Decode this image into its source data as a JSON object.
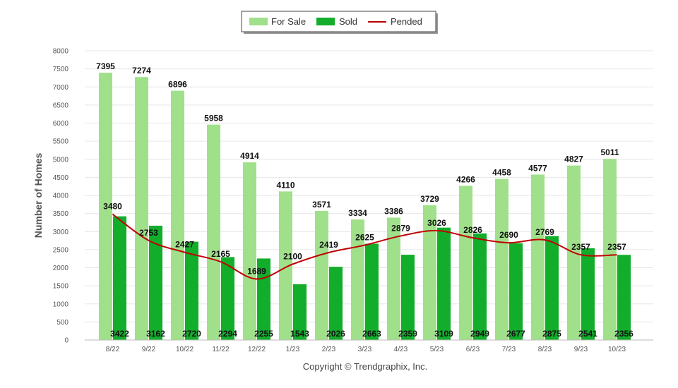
{
  "chart_data": {
    "type": "bar",
    "title": "",
    "xlabel": "",
    "ylabel": "Number of Homes",
    "ylim": [
      0,
      8000
    ],
    "yticks": [
      0,
      500,
      1000,
      1500,
      2000,
      2500,
      3000,
      3500,
      4000,
      4500,
      5000,
      5500,
      6000,
      6500,
      7000,
      7500,
      8000
    ],
    "grid": true,
    "legend_position": "top-center",
    "categories": [
      "8/22",
      "9/22",
      "10/22",
      "11/22",
      "12/22",
      "1/23",
      "2/23",
      "3/23",
      "4/23",
      "5/23",
      "6/23",
      "7/23",
      "8/23",
      "9/23",
      "10/23"
    ],
    "series": [
      {
        "name": "For Sale",
        "type": "bar",
        "color": "#a0e08a",
        "values": [
          7395,
          7274,
          6896,
          5958,
          4914,
          4110,
          3571,
          3334,
          3386,
          3729,
          4266,
          4458,
          4577,
          4827,
          5011
        ]
      },
      {
        "name": "Sold",
        "type": "bar",
        "color": "#12ad2b",
        "values": [
          3422,
          3162,
          2720,
          2294,
          2255,
          1543,
          2026,
          2663,
          2359,
          3109,
          2949,
          2677,
          2875,
          2541,
          2356
        ]
      },
      {
        "name": "Pended",
        "type": "line",
        "color": "#c00000",
        "values": [
          3480,
          2753,
          2427,
          2165,
          1689,
          2100,
          2419,
          2625,
          2879,
          3026,
          2826,
          2690,
          2769,
          2357,
          2357
        ]
      }
    ]
  },
  "copyright": "Copyright © Trendgraphix, Inc."
}
